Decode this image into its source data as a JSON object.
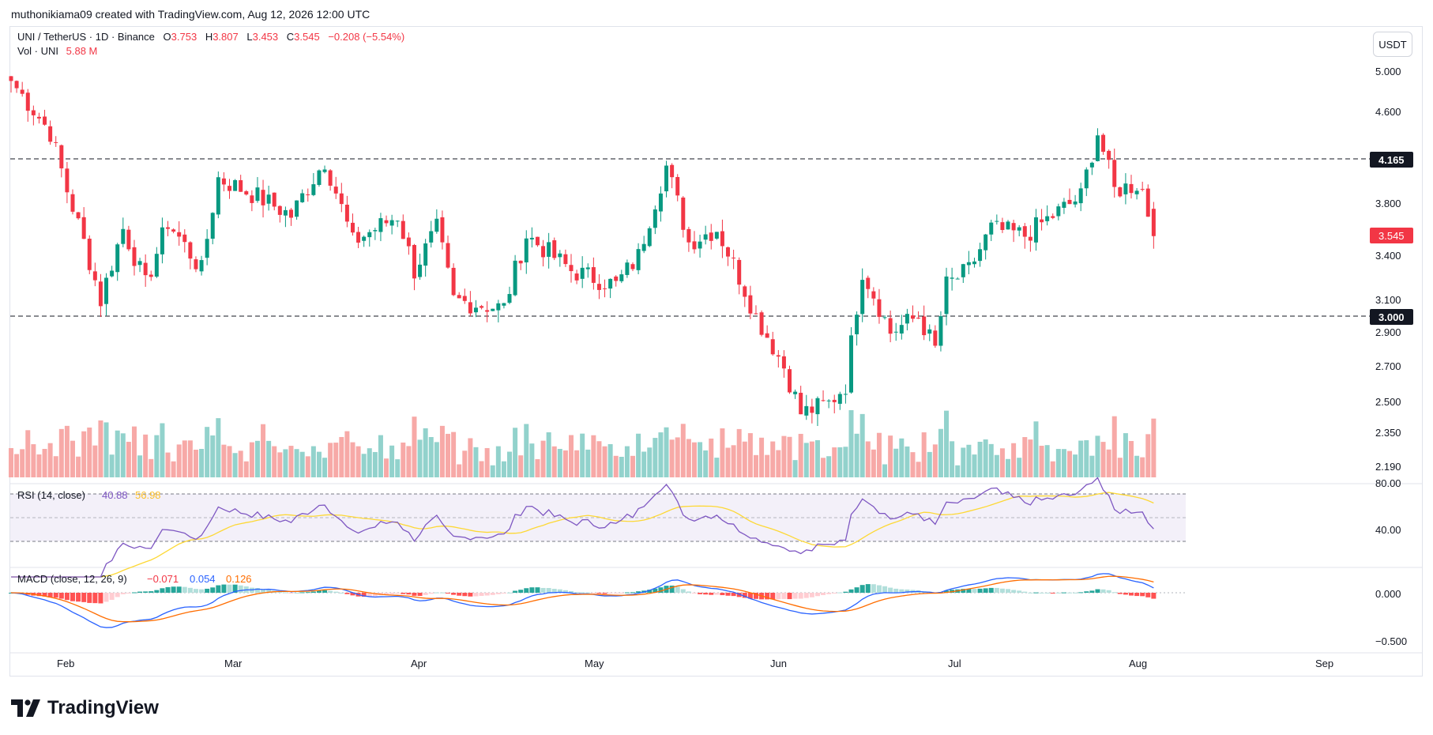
{
  "header": {
    "text": "muthonikiama09 created with TradingView.com, Aug 12, 2026 12:00 UTC"
  },
  "legend": {
    "symbol": "UNI / TetherUS · 1D · Binance",
    "o_label": "O",
    "o": "3.753",
    "h_label": "H",
    "h": "3.807",
    "l_label": "L",
    "l": "3.453",
    "c_label": "C",
    "c": "3.545",
    "change": "−0.208 (−5.54%)",
    "vol_label": "Vol · UNI",
    "vol_value": "5.88 M"
  },
  "unit_button": "USDT",
  "price_axis": {
    "ticks": [
      "5.000",
      "4.600",
      "3.800",
      "3.400",
      "3.100",
      "2.900",
      "2.700",
      "2.500",
      "2.350",
      "2.190"
    ],
    "scale": "log",
    "horizontal_lines": [
      {
        "label": "4.165"
      },
      {
        "label": "3.000"
      }
    ],
    "last_price_label": "3.545"
  },
  "rsi": {
    "title": "RSI (14, close)",
    "rsi_value": "40.88",
    "ma_value": "56.98",
    "ticks": [
      "80.00",
      "40.00"
    ],
    "bands": [
      30,
      50,
      70
    ]
  },
  "macd": {
    "title": "MACD (close, 12, 26, 9)",
    "hist_value": "−0.071",
    "macd_value": "0.054",
    "signal_value": "0.126",
    "ticks": [
      "0.000",
      "−0.500"
    ]
  },
  "time_axis": {
    "labels": [
      "Feb",
      "Mar",
      "Apr",
      "May",
      "Jun",
      "Jul",
      "Aug",
      "Sep"
    ]
  },
  "brand": {
    "name": "TradingView",
    "icon": "tradingview-logo-icon"
  },
  "colors": {
    "up": "#089981",
    "down": "#f23645",
    "vol_up": "#92d2cc",
    "vol_down": "#f7a9a7",
    "rsi": "#7e57c2",
    "rsi_ma": "#fdd835",
    "macd": "#2962ff",
    "signal": "#ff6d00",
    "hist_up_strong": "#26a69a",
    "hist_up_weak": "#b2dfdb",
    "hist_down_strong": "#ff5252",
    "hist_down_weak": "#ffcdd2"
  },
  "chart_data": {
    "type": "candlestick",
    "symbol": "UNI / TetherUS",
    "interval": "1D",
    "anchor_points": [
      [
        "Jan 20",
        4.9
      ],
      [
        "Jan 27",
        4.4
      ],
      [
        "Jan 30",
        3.9
      ],
      [
        "Feb 05",
        3.1
      ],
      [
        "Feb 09",
        3.6
      ],
      [
        "Feb 13",
        3.2
      ],
      [
        "Feb 17",
        3.65
      ],
      [
        "Feb 23",
        3.3
      ],
      [
        "Feb 26",
        4.0
      ],
      [
        "Mar 05",
        3.85
      ],
      [
        "Mar 11",
        3.7
      ],
      [
        "Mar 17",
        4.15
      ],
      [
        "Mar 22",
        3.5
      ],
      [
        "Mar 30",
        3.7
      ],
      [
        "Apr 02",
        3.3
      ],
      [
        "Apr 06",
        3.6
      ],
      [
        "Apr 09",
        3.1
      ],
      [
        "Apr 18",
        3.05
      ],
      [
        "Apr 22",
        3.55
      ],
      [
        "Apr 30",
        3.3
      ],
      [
        "May 08",
        3.2
      ],
      [
        "May 12",
        3.4
      ],
      [
        "May 17",
        4.1
      ],
      [
        "May 21",
        3.5
      ],
      [
        "May 26",
        3.6
      ],
      [
        "Jun 02",
        3.0
      ],
      [
        "Jun 07",
        2.7
      ],
      [
        "Jun 10",
        2.45
      ],
      [
        "Jun 15",
        2.5
      ],
      [
        "Jun 18",
        2.6
      ],
      [
        "Jun 21",
        3.3
      ],
      [
        "Jun 26",
        2.9
      ],
      [
        "Jul 01",
        3.0
      ],
      [
        "Jul 04",
        2.8
      ],
      [
        "Jul 06",
        3.2
      ],
      [
        "Jul 10",
        3.3
      ],
      [
        "Jul 14",
        3.6
      ],
      [
        "Jul 20",
        3.55
      ],
      [
        "Jul 25",
        3.7
      ],
      [
        "Jul 30",
        3.85
      ],
      [
        "Aug 02",
        4.4
      ],
      [
        "Aug 05",
        3.9
      ],
      [
        "Aug 09",
        3.95
      ],
      [
        "Aug 10",
        3.9
      ],
      [
        "Aug 12",
        3.545
      ]
    ],
    "last_candle": {
      "open": 3.753,
      "high": 3.807,
      "low": 3.453,
      "close": 3.545
    },
    "volume_last": "5.88 M"
  }
}
